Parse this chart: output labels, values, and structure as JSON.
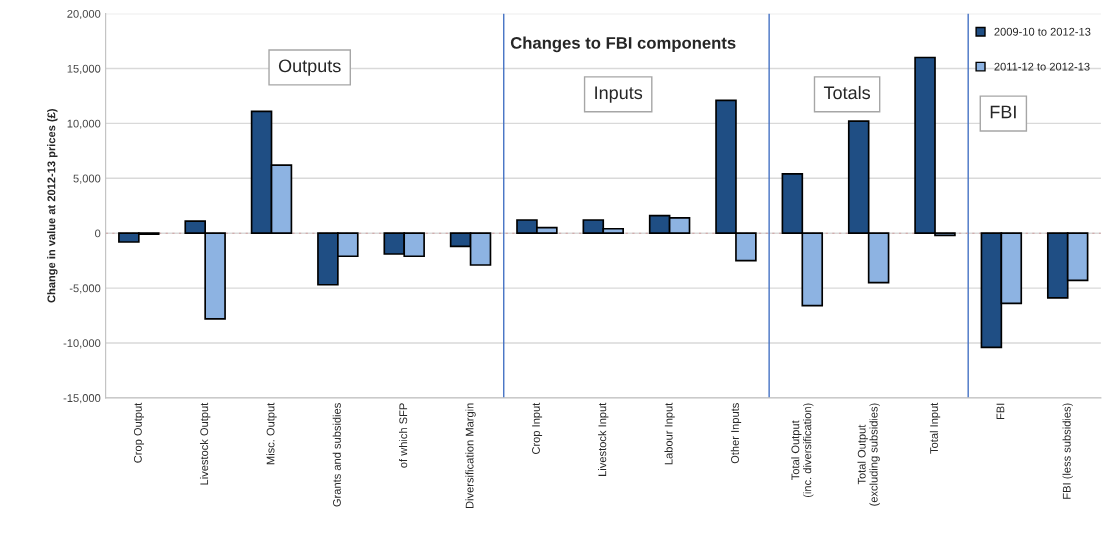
{
  "chart_data": {
    "type": "bar",
    "title": "Changes to FBI components",
    "ylabel": "Change in value at 2012-13 prices (£)",
    "categories": [
      "Crop Output",
      "Livestock Output",
      "Misc. Output",
      "Grants and subsidies",
      "of which SFP",
      "Diversification Margin",
      "Crop Input",
      "Livestock Input",
      "Labour Input",
      "Other Inputs",
      "Total Output\n(inc. diversification)",
      "Total Output\n(excluding subsidies)",
      "Total Input",
      "FBI",
      "FBI (less subsidies)"
    ],
    "series": [
      {
        "name": "2009-10 to 2012-13",
        "color": "#1f4e84",
        "values": [
          -800,
          1100,
          11100,
          -4700,
          -1900,
          -1200,
          1200,
          1200,
          1600,
          12100,
          5400,
          10200,
          16000,
          -10400,
          -5900
        ]
      },
      {
        "name": "2011-12 to 2012-13",
        "color": "#8db3e2",
        "values": [
          -100,
          -7800,
          6200,
          -2100,
          -2100,
          -2900,
          500,
          400,
          1400,
          -2500,
          -6600,
          -4500,
          -200,
          -6400,
          -4300
        ]
      }
    ],
    "ylim": [
      -15000,
      20000
    ],
    "yticks": [
      {
        "value": -15000,
        "label": "-15,000"
      },
      {
        "value": -10000,
        "label": "-10,000"
      },
      {
        "value": -5000,
        "label": "-5,000"
      },
      0,
      {
        "value": 5000,
        "label": "5,000"
      },
      {
        "value": 10000,
        "label": "10,000"
      },
      {
        "value": 15000,
        "label": "15,000"
      },
      {
        "value": 20000,
        "label": "20,000"
      }
    ],
    "ref_lines": [
      {
        "axis": "y",
        "value": 0,
        "color": "#d0a0a0",
        "line_style": "dashed"
      }
    ],
    "annotations": [
      "Outputs",
      "Inputs",
      "Totals",
      "FBI"
    ],
    "grid": "y",
    "legend": "top right"
  }
}
